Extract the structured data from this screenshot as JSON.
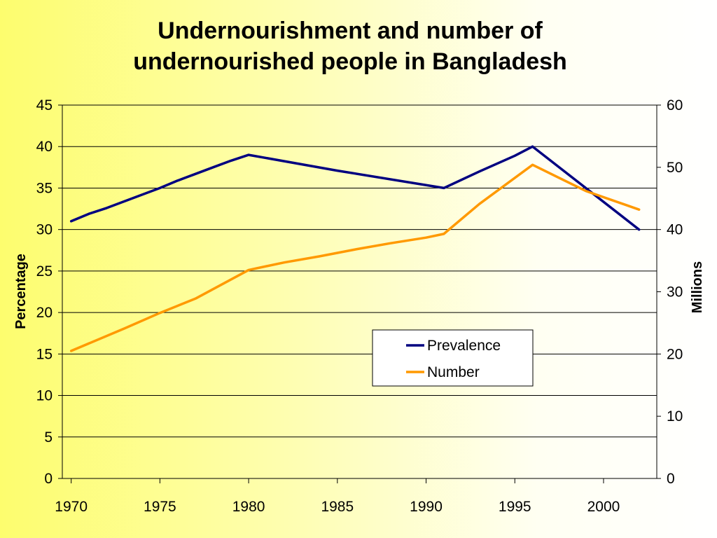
{
  "chart_data": {
    "type": "line",
    "title_line1": "Undernourishment and number of",
    "title_line2": "undernourished people in Bangladesh",
    "xlabel": "",
    "ylabel_left": "Percentage",
    "ylabel_right": "Millions",
    "xlim": [
      1969.5,
      2003
    ],
    "ylim_left": [
      0,
      45
    ],
    "ylim_right": [
      0,
      60
    ],
    "x_ticks": [
      1970,
      1975,
      1980,
      1985,
      1990,
      1995,
      2000
    ],
    "y_ticks_left": [
      0,
      5,
      10,
      15,
      20,
      25,
      30,
      35,
      40,
      45
    ],
    "y_ticks_right": [
      0,
      10,
      20,
      30,
      40,
      50,
      60
    ],
    "grid": true,
    "legend_position": "center-right",
    "series": [
      {
        "name": "Prevalence",
        "axis": "left",
        "color": "#000080",
        "x": [
          1970,
          1971,
          1972,
          1973,
          1974,
          1975,
          1976,
          1977,
          1978,
          1979,
          1980,
          1985,
          1991,
          1993,
          1995,
          1996,
          2002
        ],
        "y": [
          31,
          31.9,
          32.6,
          33.4,
          34.2,
          35.0,
          35.9,
          36.7,
          37.5,
          38.3,
          39,
          37.1,
          35,
          37,
          38.9,
          40,
          30
        ]
      },
      {
        "name": "Number",
        "axis": "right",
        "color": "#ff9900",
        "x": [
          1970,
          1973,
          1975,
          1977,
          1980,
          1982,
          1984,
          1986,
          1988,
          1990,
          1991,
          1993,
          1996,
          1999,
          2002
        ],
        "y": [
          20.5,
          24.1,
          26.6,
          28.9,
          33.5,
          34.7,
          35.7,
          36.8,
          37.8,
          38.7,
          39.3,
          44.1,
          50.4,
          46.2,
          43.2
        ]
      }
    ]
  }
}
